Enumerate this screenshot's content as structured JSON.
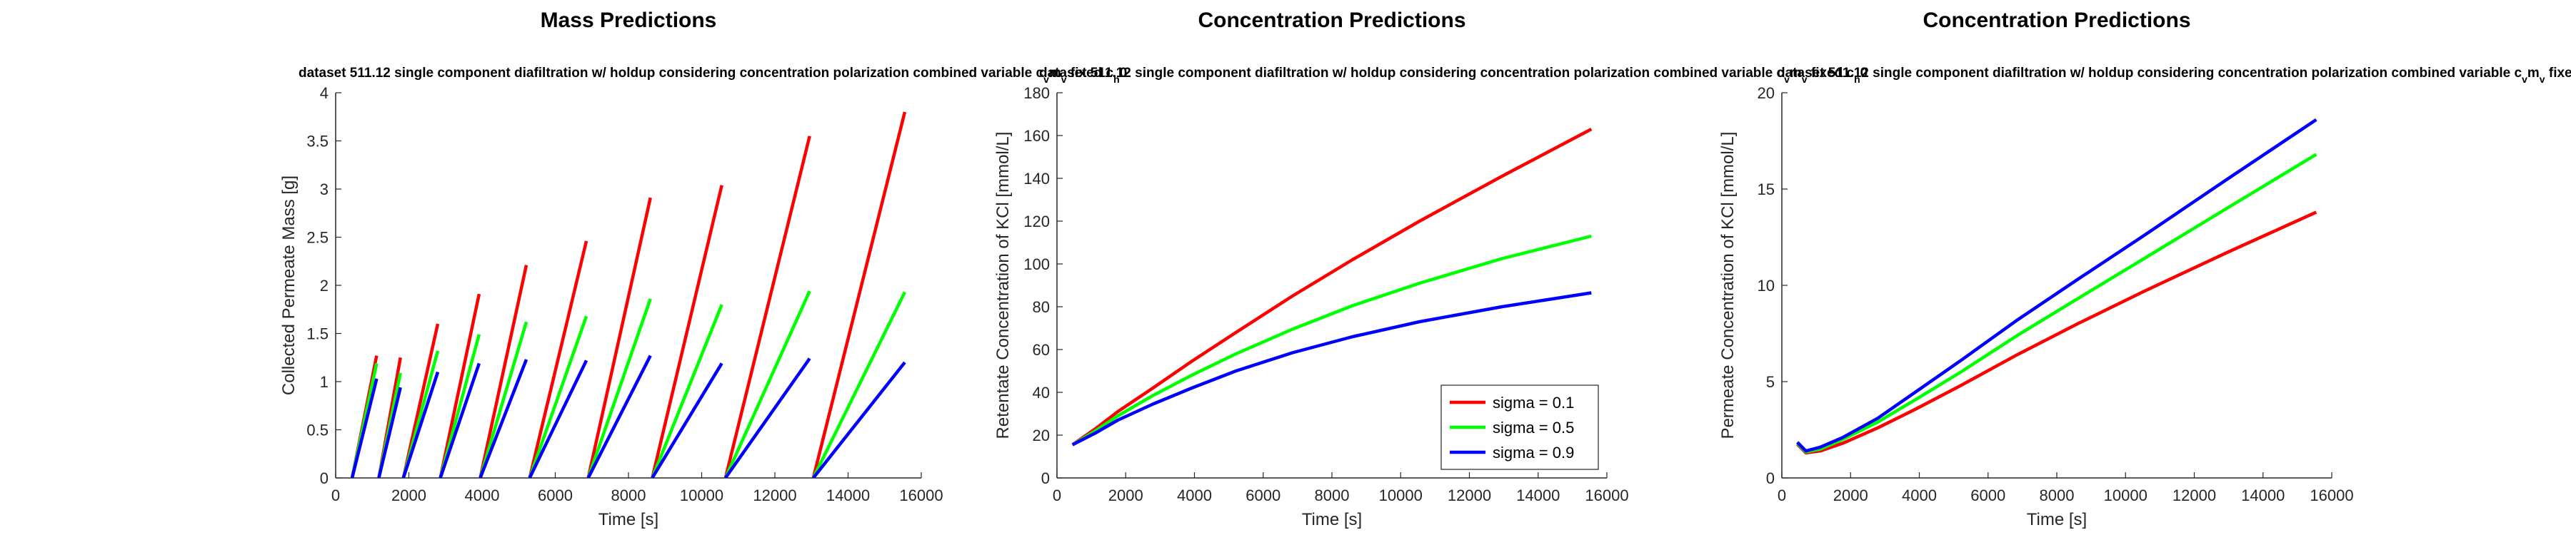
{
  "chart_data": [
    {
      "type": "line",
      "title": "Mass Predictions",
      "subtitle": "dataset 511.12 single component diafiltration w/ holdup considering concentration polarization combined variable c",
      "xlabel": "Time [s]",
      "ylabel": "Collected Permeate Mass [g]",
      "xlim": [
        0,
        16000
      ],
      "ylim": [
        0,
        4
      ],
      "xticks": [
        0,
        2000,
        4000,
        6000,
        8000,
        10000,
        12000,
        14000,
        16000
      ],
      "yticks": [
        0,
        0.5,
        1,
        1.5,
        2,
        2.5,
        3,
        3.5,
        4
      ],
      "ytick_labels": [
        "0",
        "0.5",
        "1",
        "1.5",
        "2",
        "2.5",
        "3",
        "3.5",
        "4"
      ],
      "legend": null,
      "segments": [
        {
          "t0": 450,
          "t1": 1120,
          "values": [
            1.27,
            1.19,
            1.03
          ]
        },
        {
          "t0": 1180,
          "t1": 1770,
          "values": [
            1.25,
            1.09,
            0.94
          ]
        },
        {
          "t0": 1850,
          "t1": 2790,
          "values": [
            1.6,
            1.32,
            1.1
          ]
        },
        {
          "t0": 2860,
          "t1": 3920,
          "values": [
            1.91,
            1.49,
            1.19
          ]
        },
        {
          "t0": 3950,
          "t1": 5210,
          "values": [
            2.21,
            1.62,
            1.23
          ]
        },
        {
          "t0": 5300,
          "t1": 6850,
          "values": [
            2.46,
            1.68,
            1.22
          ]
        },
        {
          "t0": 6900,
          "t1": 8600,
          "values": [
            2.91,
            1.86,
            1.27
          ]
        },
        {
          "t0": 8650,
          "t1": 10550,
          "values": [
            3.04,
            1.8,
            1.19
          ]
        },
        {
          "t0": 10650,
          "t1": 12950,
          "values": [
            3.55,
            1.94,
            1.24
          ]
        },
        {
          "t0": 13050,
          "t1": 15550,
          "values": [
            3.8,
            1.93,
            1.2
          ]
        }
      ],
      "series": [
        {
          "name": "sigma = 0.1",
          "color": "#ff0000"
        },
        {
          "name": "sigma = 0.5",
          "color": "#00ff00"
        },
        {
          "name": "sigma = 0.9",
          "color": "#0000ff"
        }
      ]
    },
    {
      "type": "line",
      "title": "Concentration Predictions",
      "subtitle": "dataset 511.12 single component diafiltration w/ holdup considering concentration polarization combined variable c",
      "xlabel": "Time [s]",
      "ylabel": "Retentate Concentration of KCl [mmol/L]",
      "xlim": [
        0,
        16000
      ],
      "ylim": [
        0,
        180
      ],
      "xticks": [
        0,
        2000,
        4000,
        6000,
        8000,
        10000,
        12000,
        14000,
        16000
      ],
      "yticks": [
        0,
        20,
        40,
        60,
        80,
        100,
        120,
        140,
        160,
        180
      ],
      "ytick_labels": [
        "0",
        "20",
        "40",
        "60",
        "80",
        "100",
        "120",
        "140",
        "160",
        "180"
      ],
      "legend": "bottom-right",
      "x": [
        450,
        1120,
        1770,
        2790,
        3920,
        5210,
        6850,
        8600,
        10550,
        12950,
        15550
      ],
      "series": [
        {
          "name": "sigma = 0.1",
          "color": "#ff0000",
          "values": [
            15.5,
            23,
            31,
            42,
            54.5,
            68,
            85,
            102,
            120,
            141,
            163
          ]
        },
        {
          "name": "sigma = 0.5",
          "color": "#00ff00",
          "values": [
            15.5,
            22,
            29,
            38.5,
            48,
            58,
            69.5,
            80.5,
            91,
            102.5,
            113
          ]
        },
        {
          "name": "sigma = 0.9",
          "color": "#0000ff",
          "values": [
            15.5,
            21,
            27,
            34.5,
            42,
            50,
            58.5,
            66,
            73,
            80,
            86.5
          ]
        }
      ]
    },
    {
      "type": "line",
      "title": "Concentration Predictions",
      "subtitle": "dataset 511.12 single component diafiltration w/ holdup considering concentration polarization combined variable c",
      "xlabel": "Time [s]",
      "ylabel": "Permeate Concentration of KCl [mmol/L]",
      "xlim": [
        0,
        16000
      ],
      "ylim": [
        0,
        20
      ],
      "xticks": [
        0,
        2000,
        4000,
        6000,
        8000,
        10000,
        12000,
        14000,
        16000
      ],
      "yticks": [
        0,
        5,
        10,
        15,
        20
      ],
      "ytick_labels": [
        "0",
        "5",
        "10",
        "15",
        "20"
      ],
      "legend": null,
      "x": [
        450,
        700,
        1120,
        1770,
        2790,
        3920,
        5210,
        6850,
        8600,
        10550,
        12950,
        15550
      ],
      "series": [
        {
          "name": "sigma = 0.1",
          "color": "#ff0000",
          "values": [
            1.75,
            1.3,
            1.4,
            1.8,
            2.6,
            3.6,
            4.8,
            6.4,
            8.0,
            9.7,
            11.7,
            13.8
          ]
        },
        {
          "name": "sigma = 0.5",
          "color": "#00ff00",
          "values": [
            1.8,
            1.35,
            1.5,
            2.0,
            2.9,
            4.1,
            5.5,
            7.4,
            9.3,
            11.4,
            14.0,
            16.8
          ]
        },
        {
          "name": "sigma = 0.9",
          "color": "#0000ff",
          "values": [
            1.85,
            1.4,
            1.6,
            2.1,
            3.1,
            4.5,
            6.1,
            8.2,
            10.3,
            12.6,
            15.5,
            18.6
          ]
        }
      ]
    }
  ]
}
